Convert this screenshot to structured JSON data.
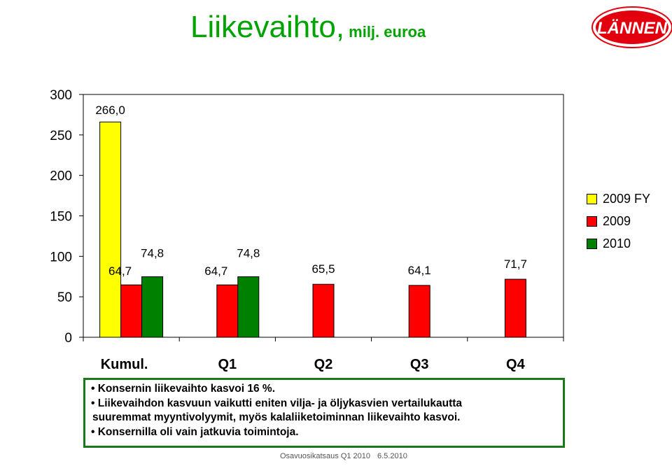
{
  "header": {
    "title": "Liikevaihto,",
    "subtitle": "milj. euroa",
    "logo_text": "LÄNNEN"
  },
  "chart_data": {
    "type": "bar",
    "categories": [
      "Kumul.",
      "Q1",
      "Q2",
      "Q3",
      "Q4"
    ],
    "series": [
      {
        "name": "2009 FY",
        "color": "#ffff00",
        "values": [
          266.0,
          null,
          null,
          null,
          null
        ],
        "labels": [
          "266,0",
          null,
          null,
          null,
          null
        ]
      },
      {
        "name": "2009",
        "color": "#ff0000",
        "values": [
          64.7,
          64.7,
          65.5,
          64.1,
          71.7
        ],
        "labels": [
          "64,7",
          "64,7",
          "65,5",
          "64,1",
          "71,7"
        ]
      },
      {
        "name": "2010",
        "color": "#008000",
        "values": [
          74.8,
          74.8,
          null,
          null,
          null
        ],
        "labels": [
          "74,8",
          "74,8",
          null,
          null,
          null
        ]
      }
    ],
    "ylim": [
      0,
      300
    ],
    "yticks": [
      "0",
      "50",
      "100",
      "150",
      "200",
      "250",
      "300"
    ],
    "legend_position": "right",
    "grid": false
  },
  "info": {
    "bullet1": "Konsernin liikevaihto kasvoi 16 %.",
    "bullet2_line1": "Liikevaihdon kasvuun vaikutti eniten vilja- ja öljykasvien vertailukautta",
    "bullet2_line2": "suuremmat myyntivolyymit, myös kalaliiketoiminnan liikevaihto kasvoi.",
    "bullet3": "Konsernilla oli vain jatkuvia toimintoja."
  },
  "footer": {
    "left": "Osavuosikatsaus Q1 2010",
    "right": "6.5.2010"
  }
}
